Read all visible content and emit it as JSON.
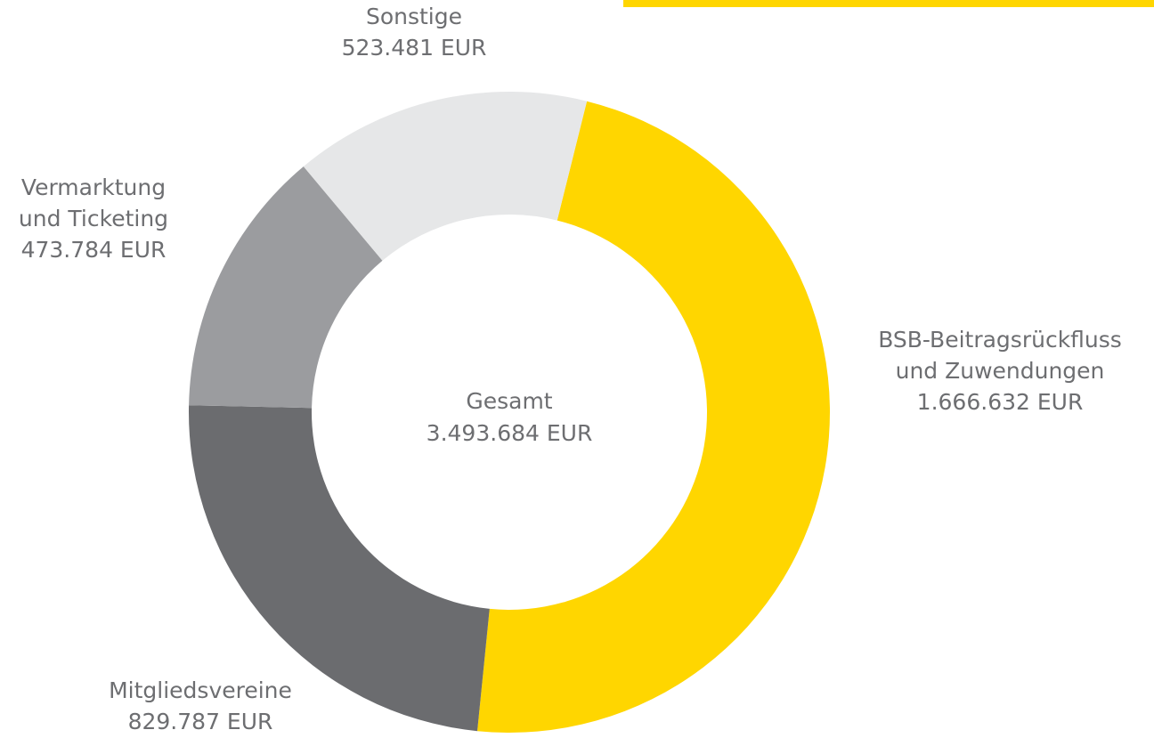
{
  "chart_data": {
    "type": "donut",
    "categories": [
      "BSB-Beitragsrückfluss\nund Zuwendungen",
      "Mitgliedsvereine",
      "Vermarktung\nund Ticketing",
      "Sonstige"
    ],
    "values": [
      1666632,
      829787,
      473784,
      523481
    ],
    "value_labels": [
      "1.666.632 EUR",
      "829.787 EUR",
      "473.784 EUR",
      "523.481 EUR"
    ],
    "colors": [
      "#ffd600",
      "#6b6c6f",
      "#9b9c9f",
      "#e6e7e8"
    ],
    "center": {
      "title": "Gesamt",
      "label": "3.493.684 EUR"
    }
  }
}
